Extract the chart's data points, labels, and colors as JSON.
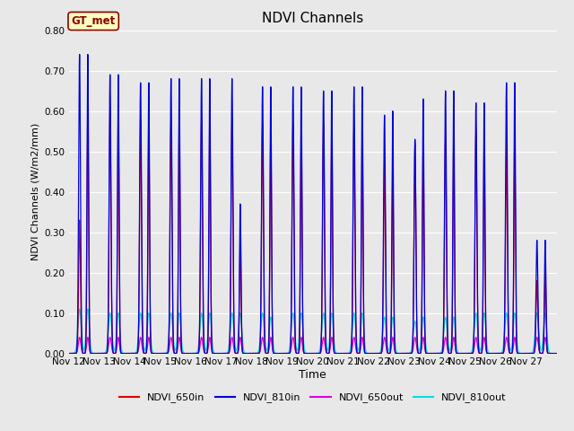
{
  "title": "NDVI Channels",
  "xlabel": "Time",
  "ylabel": "NDVI Channels (W/m2/mm)",
  "ylim": [
    0.0,
    0.8
  ],
  "yticks": [
    0.0,
    0.1,
    0.2,
    0.3,
    0.4,
    0.5,
    0.6,
    0.7,
    0.8
  ],
  "fig_bg_color": "#e8e8e8",
  "plot_bg_color": "#e8e8e8",
  "legend_labels": [
    "NDVI_650in",
    "NDVI_810in",
    "NDVI_650out",
    "NDVI_810out"
  ],
  "legend_colors": [
    "#dd0000",
    "#0000dd",
    "#dd00dd",
    "#00dddd"
  ],
  "gt_label": "GT_met",
  "xtick_labels": [
    "Nov 12",
    "Nov 13",
    "Nov 14",
    "Nov 15",
    "Nov 16",
    "Nov 17",
    "Nov 18",
    "Nov 19",
    "Nov 20",
    "Nov 21",
    "Nov 22",
    "Nov 23",
    "Nov 24",
    "Nov 25",
    "Nov 26",
    "Nov 27"
  ],
  "peak1_650in": [
    0.33,
    0.6,
    0.58,
    0.58,
    0.58,
    0.58,
    0.57,
    0.57,
    0.57,
    0.56,
    0.47,
    0.52,
    0.54,
    0.55,
    0.53,
    0.18
  ],
  "peak2_650in": [
    0.61,
    0.6,
    0.58,
    0.59,
    0.59,
    0.3,
    0.58,
    0.57,
    0.57,
    0.57,
    0.47,
    0.52,
    0.54,
    0.53,
    0.53,
    0.2
  ],
  "peak1_810in": [
    0.74,
    0.69,
    0.67,
    0.68,
    0.68,
    0.68,
    0.66,
    0.66,
    0.65,
    0.66,
    0.59,
    0.53,
    0.65,
    0.62,
    0.67,
    0.28
  ],
  "peak2_810in": [
    0.74,
    0.69,
    0.67,
    0.68,
    0.68,
    0.37,
    0.66,
    0.66,
    0.65,
    0.66,
    0.6,
    0.63,
    0.65,
    0.62,
    0.67,
    0.28
  ],
  "peak1_810out": [
    0.11,
    0.1,
    0.1,
    0.1,
    0.1,
    0.1,
    0.1,
    0.1,
    0.1,
    0.1,
    0.09,
    0.08,
    0.09,
    0.1,
    0.1,
    0.1
  ],
  "peak2_810out": [
    0.11,
    0.1,
    0.1,
    0.1,
    0.1,
    0.1,
    0.09,
    0.1,
    0.1,
    0.1,
    0.09,
    0.09,
    0.09,
    0.1,
    0.1,
    0.1
  ],
  "peak1_650out": [
    0.0,
    0.0,
    0.0,
    0.0,
    0.0,
    0.0,
    0.0,
    0.0,
    0.0,
    0.0,
    0.0,
    0.0,
    0.0,
    0.0,
    0.0,
    0.0
  ],
  "peak2_650out": [
    0.0,
    0.0,
    0.0,
    0.0,
    0.0,
    0.0,
    0.0,
    0.0,
    0.0,
    0.0,
    0.0,
    0.0,
    0.0,
    0.0,
    0.0,
    0.0
  ]
}
